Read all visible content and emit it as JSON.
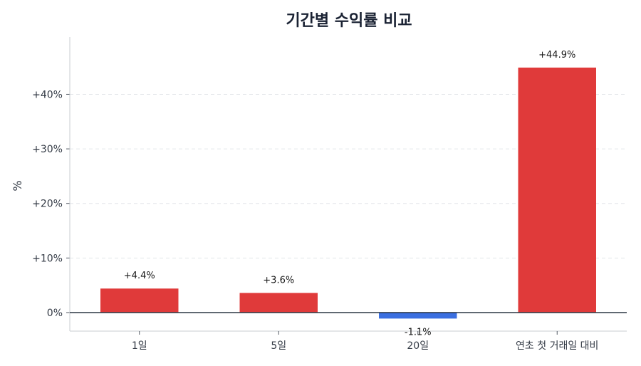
{
  "chart_data": {
    "type": "bar",
    "title": "기간별 수익률 비교",
    "xlabel": "",
    "ylabel": "%",
    "categories": [
      "1일",
      "5일",
      "20일",
      "연초 첫 거래일 대비"
    ],
    "values": [
      4.4,
      3.6,
      -1.1,
      44.9
    ],
    "data_labels": [
      "+4.4%",
      "+3.6%",
      "-1.1%",
      "+44.9%"
    ],
    "ylim": [
      -3.4,
      50.5
    ],
    "yticks": [
      0,
      10,
      20,
      30,
      40
    ],
    "ytick_labels": [
      "0%",
      "+10%",
      "+20%",
      "+30%",
      "+40%"
    ],
    "grid": true,
    "colors": {
      "positive": "#e03a3a",
      "negative": "#3b6fe0",
      "zero_line": "#1f2a37",
      "grid": "#e3e6ea"
    }
  }
}
